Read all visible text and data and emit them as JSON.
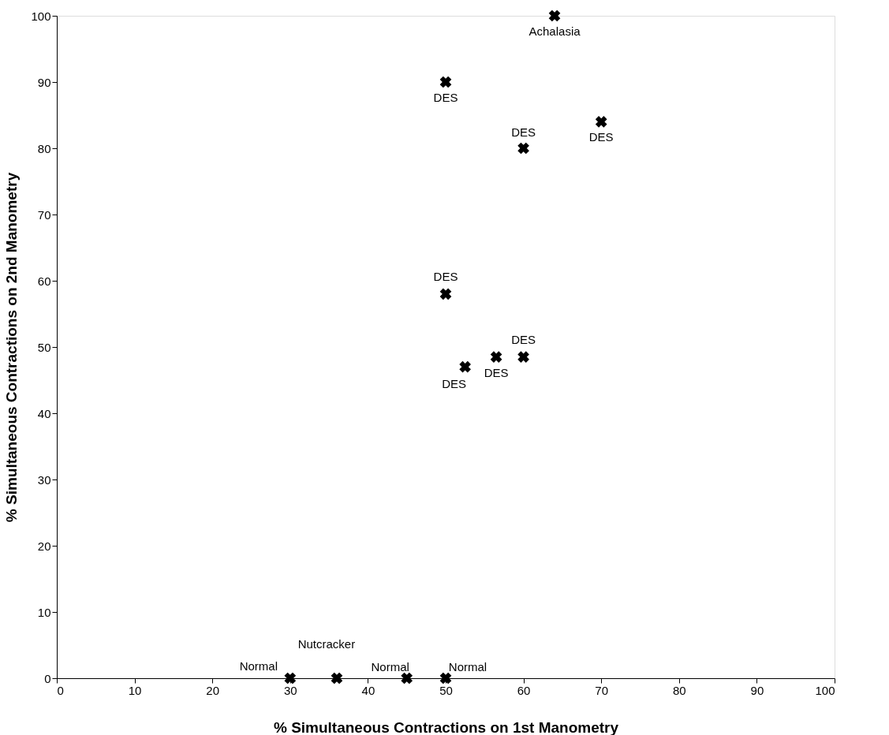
{
  "chart_data": {
    "type": "scatter",
    "xlabel": "% Simultaneous Contractions on 1st Manometry",
    "ylabel": "% Simultaneous Contractions on 2nd Manometry",
    "x": [
      64,
      50,
      60,
      70,
      50,
      52.5,
      56.5,
      60,
      30,
      36,
      45,
      50
    ],
    "values": [
      100,
      90,
      80,
      84,
      58,
      47,
      48.5,
      48.5,
      0,
      0,
      0,
      0
    ],
    "color": "#000000",
    "marker": "cross",
    "grid": false,
    "xlim": [
      0,
      100
    ],
    "ylim": [
      0,
      100
    ],
    "xticks": [
      0,
      10,
      20,
      30,
      40,
      50,
      60,
      70,
      80,
      90,
      100
    ],
    "yticks": [
      0,
      10,
      20,
      30,
      40,
      50,
      60,
      70,
      80,
      90,
      100
    ],
    "annotations": [
      {
        "text": "Achalasia",
        "x": 64,
        "y": 100
      },
      {
        "text": "DES",
        "x": 50,
        "y": 90
      },
      {
        "text": "DES",
        "x": 60,
        "y": 80
      },
      {
        "text": "DES",
        "x": 70,
        "y": 84
      },
      {
        "text": "DES",
        "x": 50,
        "y": 58
      },
      {
        "text": "DES",
        "x": 52.5,
        "y": 47
      },
      {
        "text": "DES",
        "x": 56.5,
        "y": 48.5
      },
      {
        "text": "DES",
        "x": 60,
        "y": 48.5
      },
      {
        "text": "Normal",
        "x": 30,
        "y": 0
      },
      {
        "text": "Nutcracker",
        "x": 36,
        "y": 0
      },
      {
        "text": "Normal",
        "x": 45,
        "y": 0
      },
      {
        "text": "Normal",
        "x": 50,
        "y": 0
      }
    ]
  }
}
